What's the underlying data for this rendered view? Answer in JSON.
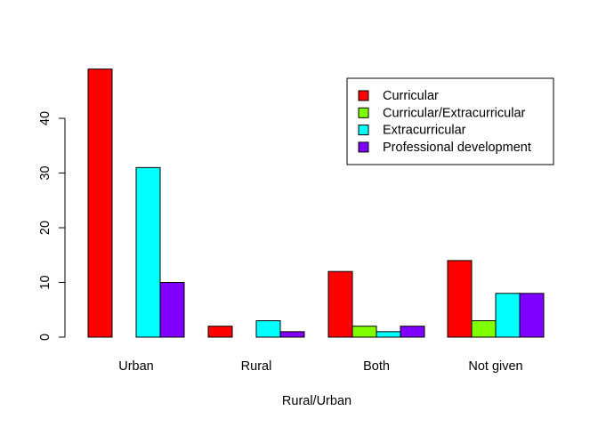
{
  "chart_data": {
    "type": "bar",
    "xlabel": "Rural/Urban",
    "ylabel": "",
    "categories": [
      "Urban",
      "Rural",
      "Both",
      "Not given"
    ],
    "series": [
      {
        "name": "Curricular",
        "color": "#ff0000",
        "values": [
          49,
          2,
          12,
          14
        ]
      },
      {
        "name": "Curricular/Extracurricular",
        "color": "#80ff00",
        "values": [
          0,
          0,
          2,
          3
        ]
      },
      {
        "name": "Extracurricular",
        "color": "#00ffff",
        "values": [
          31,
          3,
          1,
          8
        ]
      },
      {
        "name": "Professional development",
        "color": "#8000ff",
        "values": [
          10,
          1,
          2,
          8
        ]
      }
    ],
    "yticks": [
      0,
      10,
      20,
      30,
      40
    ],
    "ylim": [
      0,
      49
    ],
    "grid": false,
    "legend_position": "top-right"
  }
}
